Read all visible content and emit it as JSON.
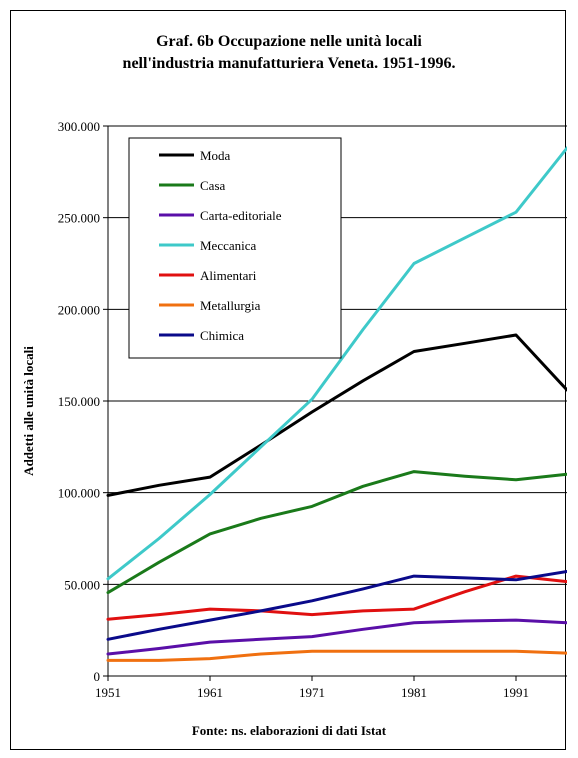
{
  "title_line1": "Graf. 6b  Occupazione nelle unità locali",
  "title_line2": "nell'industria manufatturiera Veneta. 1951-1996.",
  "source": "Fonte: ns. elaborazioni di dati Istat",
  "chart_data": {
    "type": "line",
    "title": "Graf. 6b  Occupazione nelle unità locali nell'industria manufatturiera Veneta. 1951-1996.",
    "ylabel": "Addetti alle unità locali",
    "xlabel": "",
    "x": [
      1951,
      1956,
      1961,
      1966,
      1971,
      1976,
      1981,
      1986,
      1991,
      1996
    ],
    "xticks": [
      "1951",
      "1961",
      "1971",
      "1981",
      "1991"
    ],
    "xlim": [
      1951,
      1996
    ],
    "ylim": [
      0,
      300000
    ],
    "yticks": [
      "0",
      "50.000",
      "100.000",
      "150.000",
      "200.000",
      "250.000",
      "300.000"
    ],
    "grid": true,
    "legend_position": "top-left",
    "series": [
      {
        "name": "Moda",
        "color": "#000000",
        "values": [
          98500,
          104000,
          108500,
          126000,
          144000,
          161000,
          177000,
          181500,
          186000,
          156000
        ]
      },
      {
        "name": "Casa",
        "color": "#1a7a1a",
        "values": [
          45500,
          62000,
          77500,
          86000,
          92500,
          103500,
          111500,
          109000,
          107000,
          110000
        ]
      },
      {
        "name": "Carta-editoriale",
        "color": "#5a0fa8",
        "values": [
          12000,
          15000,
          18500,
          20000,
          21500,
          25500,
          29000,
          30000,
          30500,
          29000
        ]
      },
      {
        "name": "Meccanica",
        "color": "#3ec9c9",
        "values": [
          53000,
          75000,
          99000,
          125000,
          151000,
          189000,
          225000,
          239000,
          253000,
          288000
        ]
      },
      {
        "name": "Alimentari",
        "color": "#e01010",
        "values": [
          31000,
          33500,
          36500,
          35500,
          33500,
          35500,
          36500,
          46000,
          54500,
          51500
        ]
      },
      {
        "name": "Metallurgia",
        "color": "#f07010",
        "values": [
          8500,
          8500,
          9500,
          12000,
          13500,
          13500,
          13500,
          13500,
          13500,
          12500
        ]
      },
      {
        "name": "Chimica",
        "color": "#0a0a8a",
        "values": [
          20000,
          25500,
          30500,
          35500,
          41000,
          47500,
          54500,
          53500,
          52500,
          57000
        ]
      }
    ]
  }
}
